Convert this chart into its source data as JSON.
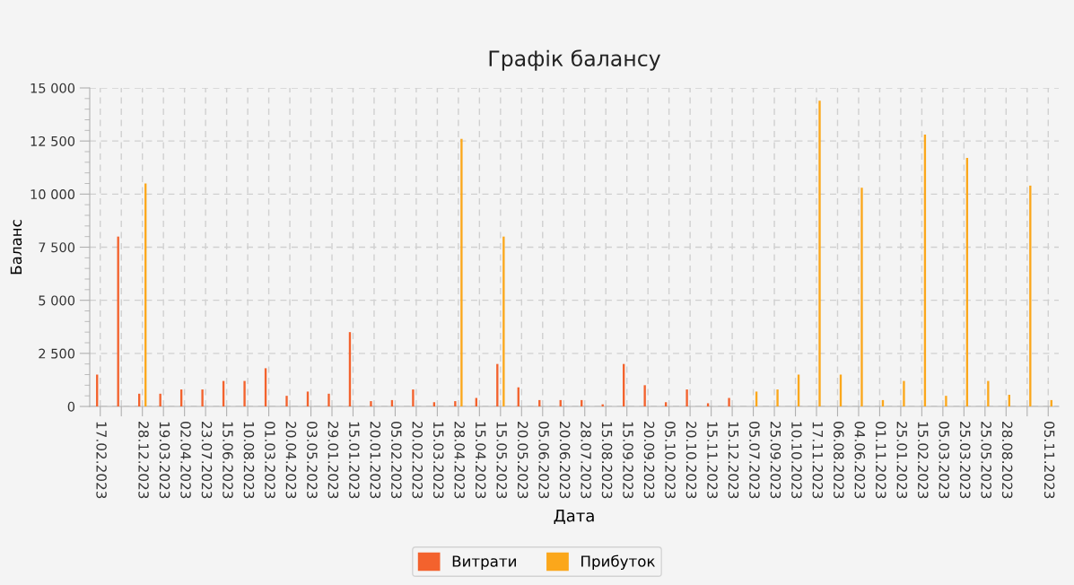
{
  "chart_data": {
    "type": "bar",
    "title": "Графік балансу",
    "xlabel": "Дата",
    "ylabel": "Баланс",
    "categories": [
      "17.02.2023",
      null,
      "28.12.2023",
      "19.03.2023",
      "02.04.2023",
      "23.07.2023",
      "15.06.2023",
      "10.08.2023",
      "01.03.2023",
      "20.04.2023",
      "03.05.2023",
      "29.01.2023",
      "15.01.2023",
      "20.01.2023",
      "05.02.2023",
      "20.02.2023",
      "15.03.2023",
      "28.04.2023",
      "15.04.2023",
      "15.05.2023",
      "20.05.2023",
      "05.06.2023",
      "20.06.2023",
      "28.07.2023",
      "15.08.2023",
      "15.09.2023",
      "20.09.2023",
      "05.10.2023",
      "20.10.2023",
      "15.11.2023",
      "15.12.2023",
      "05.07.2023",
      "25.09.2023",
      "10.10.2023",
      "17.11.2023",
      "06.08.2023",
      "04.06.2023",
      "01.11.2023",
      "25.01.2023",
      "15.02.2023",
      "05.03.2023",
      "25.03.2023",
      "25.05.2023",
      "28.08.2023",
      null,
      "05.11.2023"
    ],
    "series": [
      {
        "name": "Витрати",
        "color": "#f3622d",
        "values": [
          1500,
          8000,
          600,
          600,
          800,
          800,
          1200,
          1200,
          1800,
          500,
          700,
          600,
          3500,
          250,
          300,
          800,
          200,
          250,
          400,
          2000,
          900,
          300,
          300,
          300,
          100,
          2000,
          1000,
          200,
          800,
          150,
          400,
          null,
          null,
          null,
          null,
          null,
          null,
          null,
          null,
          null,
          null,
          null,
          null,
          null,
          null,
          null
        ]
      },
      {
        "name": "Прибуток",
        "color": "#fba71b",
        "values": [
          null,
          null,
          10500,
          null,
          null,
          null,
          null,
          null,
          null,
          null,
          null,
          null,
          null,
          null,
          null,
          null,
          null,
          12600,
          null,
          8000,
          null,
          null,
          null,
          null,
          null,
          null,
          null,
          null,
          null,
          null,
          null,
          700,
          800,
          1500,
          14400,
          1500,
          10300,
          300,
          1200,
          12800,
          500,
          11700,
          1200,
          550,
          10400,
          300
        ]
      }
    ],
    "ylim": [
      0,
      15000
    ],
    "yticks": [
      0,
      {
        "value": 2500,
        "label": "2 500"
      },
      {
        "value": 5000,
        "label": "5 000"
      },
      {
        "value": 7500,
        "label": "7 500"
      },
      {
        "value": 10000,
        "label": "10 000"
      },
      {
        "value": 12500,
        "label": "12 500"
      },
      {
        "value": 15000,
        "label": "15 000"
      }
    ],
    "grid": true,
    "legend": "bottom"
  }
}
